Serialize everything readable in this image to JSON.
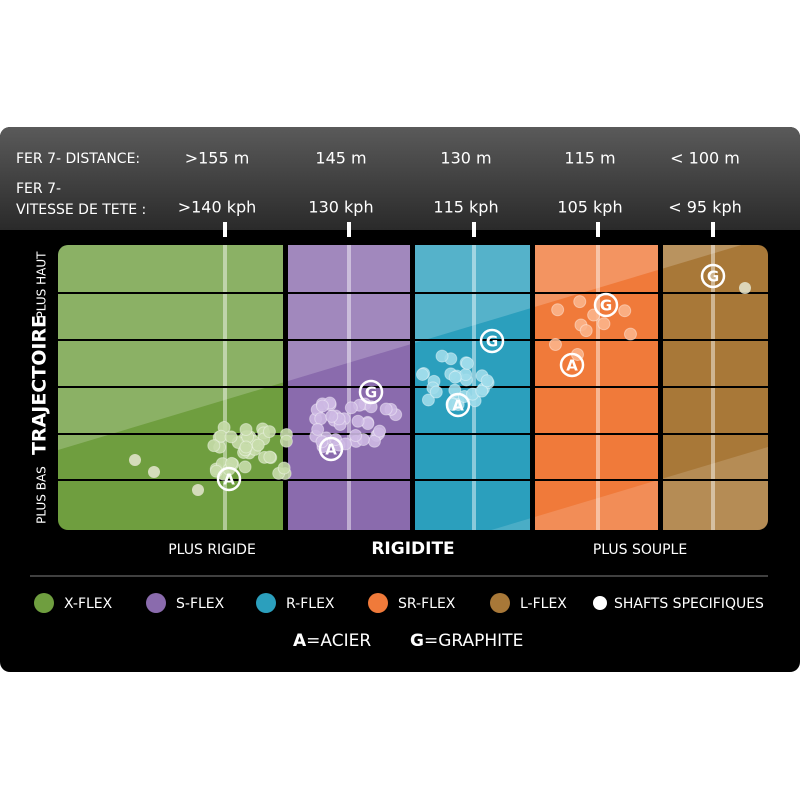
{
  "header": {
    "rows": [
      {
        "label": [
          "FER 7- DISTANCE:"
        ],
        "values": [
          ">155 m",
          "145 m",
          "130 m",
          "115 m",
          "< 100 m"
        ]
      },
      {
        "label": [
          "FER 7-",
          "VITESSE DE TETE :"
        ],
        "values": [
          ">140 kph",
          "130 kph",
          "115 kph",
          "105 kph",
          "< 95 kph"
        ]
      }
    ]
  },
  "axis": {
    "y_title": "TRAJECTOIRE",
    "y_high": "PLUS HAUT",
    "y_low": "PLUS BAS",
    "x_title": "RIGIDITE",
    "x_left": "PLUS RIGIDE",
    "x_right": "PLUS SOUPLE"
  },
  "legend": [
    {
      "name": "X-FLEX",
      "color": "#6f9e3f"
    },
    {
      "name": "S-FLEX",
      "color": "#8a6bad"
    },
    {
      "name": "R-FLEX",
      "color": "#2b9fbd"
    },
    {
      "name": "SR-FLEX",
      "color": "#f07a3a"
    },
    {
      "name": "L-FLEX",
      "color": "#a87838"
    },
    {
      "name": "SHAFTS SPECIFIQUES",
      "color": "#ffffff"
    }
  ],
  "key": [
    {
      "letter": "A",
      "text": "=ACIER"
    },
    {
      "letter": "G",
      "text": "=GRAPHITE"
    }
  ]
}
